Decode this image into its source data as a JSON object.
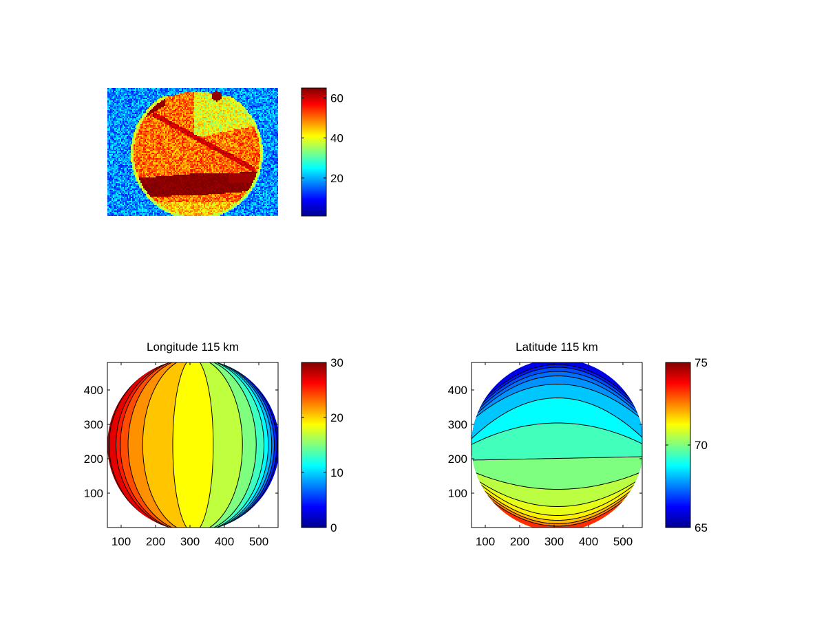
{
  "chart_data": [
    {
      "type": "heatmap",
      "title": "",
      "colormap": "jet",
      "description_values": {
        "background_level": 18,
        "disk_level": 50,
        "band_level": 64
      },
      "colorbar": {
        "clim": [
          1,
          65
        ],
        "ticks": [
          20,
          40,
          60
        ],
        "tick_labels": [
          "20",
          "40",
          "60"
        ]
      }
    },
    {
      "type": "contour",
      "title": "Longitude 115 km",
      "colormap": "jet",
      "xlim": [
        60,
        556
      ],
      "ylim": [
        0,
        480
      ],
      "xticks": [
        100,
        200,
        300,
        400,
        500
      ],
      "xtick_labels": [
        "100",
        "200",
        "300",
        "400",
        "500"
      ],
      "yticks": [
        100,
        200,
        300,
        400
      ],
      "ytick_labels": [
        "100",
        "200",
        "300",
        "400"
      ],
      "band_values": [
        29,
        27,
        25.5,
        24,
        22,
        20.4,
        18.75,
        16.9,
        15,
        13.1,
        11.25,
        9.4,
        7.5,
        5,
        2
      ],
      "colorbar": {
        "clim": [
          0,
          30
        ],
        "ticks": [
          0,
          10,
          20,
          30
        ],
        "tick_labels": [
          "0",
          "10",
          "20",
          "30"
        ]
      }
    },
    {
      "type": "contour",
      "title": "Latitude 115 km",
      "colormap": "jet",
      "xlim": [
        60,
        556
      ],
      "ylim": [
        0,
        480
      ],
      "xticks": [
        100,
        200,
        300,
        400,
        500
      ],
      "xtick_labels": [
        "100",
        "200",
        "300",
        "400",
        "500"
      ],
      "yticks": [
        100,
        200,
        300,
        400
      ],
      "ytick_labels": [
        "100",
        "200",
        "300",
        "400"
      ],
      "band_values": [
        66,
        66.5,
        67,
        67.35,
        67.7,
        68.2,
        68.75,
        69.4,
        70,
        70.6,
        71,
        71.4,
        71.9,
        72.5,
        73.3
      ],
      "colorbar": {
        "clim": [
          65,
          75
        ],
        "ticks": [
          65,
          70,
          75
        ],
        "tick_labels": [
          "65",
          "70",
          "75"
        ]
      }
    }
  ]
}
